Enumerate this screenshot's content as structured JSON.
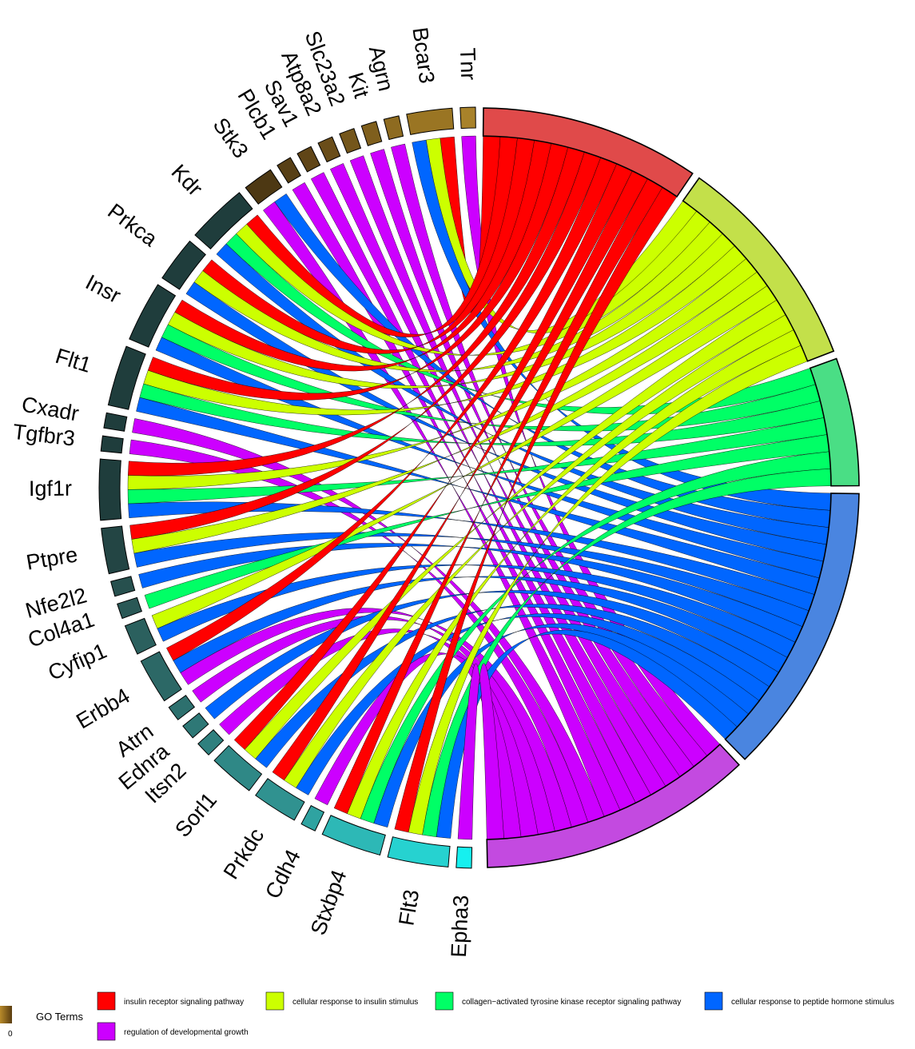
{
  "chart_data": {
    "type": "chord",
    "genes": [
      "Tnr",
      "Bcar3",
      "Agrn",
      "Kit",
      "Slc23a2",
      "Atp8a2",
      "Sav1",
      "Plcb1",
      "Stk3",
      "Kdr",
      "Prkca",
      "Insr",
      "Flt1",
      "Cxadr",
      "Tgfbr3",
      "Igf1r",
      "Ptpre",
      "Nfe2l2",
      "Col4a1",
      "Cyfip1",
      "Erbb4",
      "Atrn",
      "Ednra",
      "Itsn2",
      "Sorl1",
      "Prkdc",
      "Cdh4",
      "Stxbp4",
      "Flt3",
      "Epha3"
    ],
    "terms": [
      {
        "name": "insulin receptor signaling pathway",
        "color": "#ff0000",
        "arc_color": "#e04a4a"
      },
      {
        "name": "cellular response to insulin stimulus",
        "color": "#ccff00",
        "arc_color": "#c3e04a"
      },
      {
        "name": "collagen−activated tyrosine kinase receptor signaling pathway",
        "color": "#00ff66",
        "arc_color": "#4ade85"
      },
      {
        "name": "cellular response to peptide hormone stimulus",
        "color": "#0066ff",
        "arc_color": "#4a85e0"
      },
      {
        "name": "regulation of developmental growth",
        "color": "#cc00ff",
        "arc_color": "#c34ae0"
      }
    ],
    "gene_terms": [
      [
        4
      ],
      [
        0,
        1,
        3
      ],
      [
        4
      ],
      [
        4
      ],
      [
        4
      ],
      [
        4
      ],
      [
        4
      ],
      [
        4
      ],
      [
        3,
        4
      ],
      [
        0,
        1,
        2,
        3
      ],
      [
        0,
        1,
        3
      ],
      [
        0,
        1,
        2,
        3
      ],
      [
        0,
        1,
        2,
        3
      ],
      [
        4
      ],
      [
        4
      ],
      [
        0,
        1,
        2,
        3
      ],
      [
        0,
        1,
        3
      ],
      [
        3
      ],
      [
        2
      ],
      [
        1,
        3
      ],
      [
        0,
        3,
        4
      ],
      [
        4
      ],
      [
        3
      ],
      [
        4
      ],
      [
        0,
        1,
        3
      ],
      [
        0,
        1,
        3
      ],
      [
        4
      ],
      [
        0,
        1,
        2,
        3
      ],
      [
        0,
        1,
        2,
        3
      ],
      [
        4
      ]
    ],
    "gene_logfc": [
      0.05,
      0.08,
      0.14,
      0.18,
      0.22,
      0.26,
      0.3,
      0.34,
      0.38,
      0.95,
      0.94,
      0.93,
      0.92,
      0.91,
      0.9,
      0.89,
      0.88,
      0.84,
      0.8,
      0.76,
      0.72,
      0.68,
      0.64,
      0.6,
      0.56,
      0.52,
      0.47,
      0.42,
      0.37,
      0.3
    ]
  },
  "legend": {
    "title": "GO Terms",
    "scale_label": "0"
  }
}
